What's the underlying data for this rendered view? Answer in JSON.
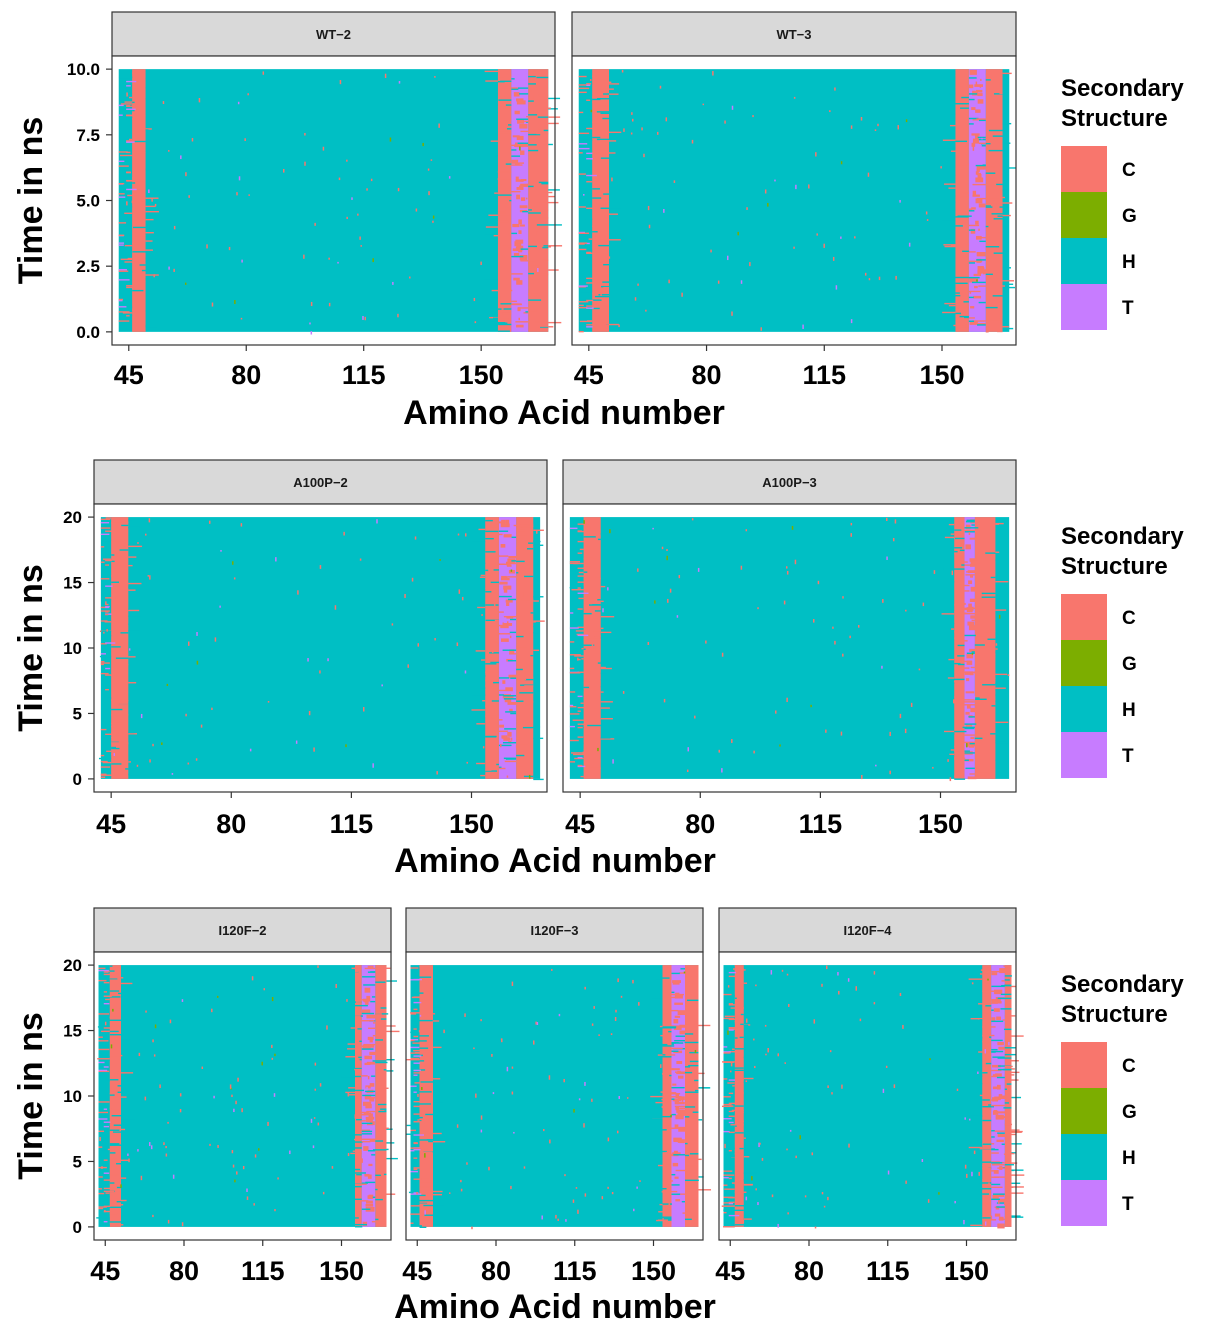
{
  "chart_data": [
    {
      "type": "heatmap",
      "xlabel": "Amino Acid number",
      "ylabel": "Time in ns",
      "xlim": [
        40,
        172
      ],
      "ylim": [
        -0.5,
        10.5
      ],
      "xticks": [
        "45",
        "80",
        "115",
        "150"
      ],
      "yticks": [
        "0.0",
        "2.5",
        "5.0",
        "7.5",
        "10.0"
      ],
      "tmax": 10,
      "panels": [
        {
          "label": "WT−2",
          "res_start": 42,
          "res_end": 170,
          "coil_bands": [
            [
              46,
              50
            ],
            [
              155,
              159
            ],
            [
              164,
              170
            ]
          ],
          "turn_bands": [
            [
              159,
              164
            ]
          ],
          "dark_coil_band": [
            155,
            158
          ]
        },
        {
          "label": "WT−3",
          "res_start": 42,
          "res_end": 170,
          "coil_bands": [
            [
              46,
              51
            ],
            [
              154,
              158
            ],
            [
              163,
              168
            ]
          ],
          "turn_bands": [
            [
              158,
              163
            ]
          ],
          "dark_coil_band": [
            154,
            157
          ]
        }
      ]
    },
    {
      "type": "heatmap",
      "xlabel": "Amino Acid number",
      "ylabel": "Time in ns",
      "xlim": [
        40,
        172
      ],
      "ylim": [
        -1,
        21
      ],
      "xticks": [
        "45",
        "80",
        "115",
        "150"
      ],
      "yticks": [
        "0",
        "5",
        "10",
        "15",
        "20"
      ],
      "tmax": 20,
      "panels": [
        {
          "label": "A100P−2",
          "res_start": 42,
          "res_end": 170,
          "coil_bands": [
            [
              45,
              50
            ],
            [
              154,
              158
            ],
            [
              163,
              168
            ]
          ],
          "turn_bands": [
            [
              158,
              163
            ]
          ],
          "dark_coil_band": [
            154,
            157
          ]
        },
        {
          "label": "A100P−3",
          "res_start": 42,
          "res_end": 170,
          "coil_bands": [
            [
              46,
              51
            ],
            [
              154,
              157
            ],
            [
              160,
              166
            ]
          ],
          "turn_bands": [
            [
              157,
              160
            ]
          ],
          "dark_coil_band": [
            154,
            156
          ]
        }
      ]
    },
    {
      "type": "heatmap",
      "xlabel": "Amino Acid number",
      "ylabel": "Time in ns",
      "xlim": [
        40,
        172
      ],
      "ylim": [
        -1,
        21
      ],
      "xticks": [
        "45",
        "80",
        "115",
        "150"
      ],
      "yticks": [
        "0",
        "5",
        "10",
        "15",
        "20"
      ],
      "tmax": 20,
      "panels": [
        {
          "label": "I120F−2",
          "res_start": 42,
          "res_end": 170,
          "coil_bands": [
            [
              47,
              52
            ],
            [
              156,
              159
            ],
            [
              165,
              170
            ]
          ],
          "turn_bands": [
            [
              159,
              165
            ]
          ],
          "dark_coil_band": [
            156,
            158
          ]
        },
        {
          "label": "I120F−3",
          "res_start": 42,
          "res_end": 170,
          "coil_bands": [
            [
              46,
              52
            ],
            [
              154,
              158
            ],
            [
              164,
              170
            ]
          ],
          "turn_bands": [
            [
              158,
              164
            ]
          ],
          "dark_coil_band": [
            154,
            157
          ]
        },
        {
          "label": "I120F−4",
          "res_start": 42,
          "res_end": 170,
          "coil_bands": [
            [
              47,
              51
            ],
            [
              157,
              161
            ],
            [
              167,
              170
            ]
          ],
          "turn_bands": [
            [
              161,
              167
            ]
          ],
          "dark_coil_band": [
            157,
            159
          ]
        }
      ]
    }
  ],
  "legend": {
    "title_line1": "Secondary",
    "title_line2": "Structure",
    "items": [
      {
        "label": "C",
        "color": "#F8766D"
      },
      {
        "label": "G",
        "color": "#7CAE00"
      },
      {
        "label": "H",
        "color": "#00BFC4"
      },
      {
        "label": "T",
        "color": "#C77CFF"
      }
    ]
  },
  "colors": {
    "C": "#F8766D",
    "G": "#7CAE00",
    "H": "#00BFC4",
    "T": "#C77CFF",
    "strip": "#D9D9D9"
  }
}
